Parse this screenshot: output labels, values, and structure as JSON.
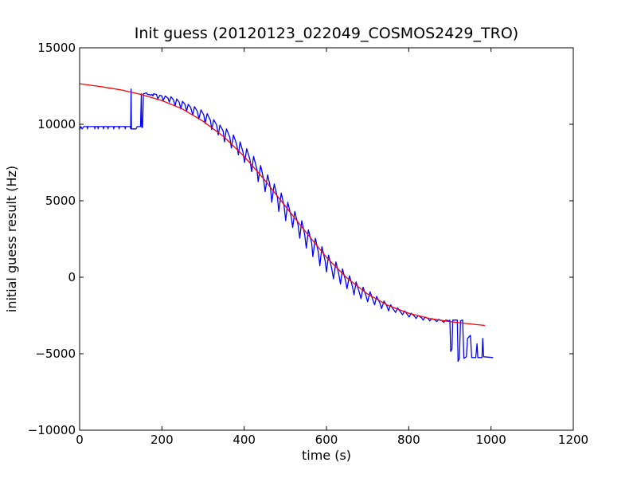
{
  "chart_data": {
    "type": "line",
    "title": "Init guess (20120123_022049_COSMOS2429_TRO)",
    "xlabel": "time (s)",
    "ylabel": "initial guess result (Hz)",
    "xlim": [
      0,
      1200
    ],
    "ylim": [
      -10000,
      15000
    ],
    "xticks": [
      0,
      200,
      400,
      600,
      800,
      1000,
      1200
    ],
    "yticks": [
      -10000,
      -5000,
      0,
      5000,
      10000,
      15000
    ],
    "grid": false,
    "series": [
      {
        "color": "#0000ff",
        "points": [
          [
            0,
            9650
          ],
          [
            3,
            9850
          ],
          [
            6,
            9700
          ],
          [
            10,
            9850
          ],
          [
            18,
            9850
          ],
          [
            19,
            9700
          ],
          [
            20,
            9850
          ],
          [
            36,
            9850
          ],
          [
            37,
            9700
          ],
          [
            38,
            9850
          ],
          [
            44,
            9850
          ],
          [
            45,
            9700
          ],
          [
            46,
            9850
          ],
          [
            57,
            9850
          ],
          [
            58,
            9700
          ],
          [
            59,
            9850
          ],
          [
            68,
            9850
          ],
          [
            69,
            9700
          ],
          [
            70,
            9850
          ],
          [
            82,
            9850
          ],
          [
            83,
            9700
          ],
          [
            84,
            9850
          ],
          [
            95,
            9850
          ],
          [
            96,
            9700
          ],
          [
            97,
            9850
          ],
          [
            110,
            9850
          ],
          [
            111,
            9700
          ],
          [
            112,
            9850
          ],
          [
            123,
            9850
          ],
          [
            124,
            9700
          ],
          [
            125,
            12300
          ],
          [
            126,
            9700
          ],
          [
            137,
            9700
          ],
          [
            140,
            9850
          ],
          [
            148,
            9850
          ],
          [
            150,
            12000
          ],
          [
            151,
            9800
          ],
          [
            153,
            9800
          ],
          [
            155,
            12000
          ],
          [
            163,
            12050
          ],
          [
            165,
            11950
          ],
          [
            170,
            11950
          ],
          [
            172,
            11900
          ],
          [
            176,
            11950
          ],
          [
            178,
            11850
          ],
          [
            180,
            12000
          ],
          [
            187,
            11950
          ],
          [
            190,
            11650
          ],
          [
            195,
            11900
          ],
          [
            200,
            11850
          ],
          [
            203,
            11550
          ],
          [
            208,
            11850
          ],
          [
            215,
            11700
          ],
          [
            218,
            11450
          ],
          [
            222,
            11800
          ],
          [
            228,
            11600
          ],
          [
            232,
            11200
          ],
          [
            236,
            11650
          ],
          [
            242,
            11450
          ],
          [
            246,
            11000
          ],
          [
            250,
            11500
          ],
          [
            256,
            11300
          ],
          [
            260,
            10850
          ],
          [
            264,
            11300
          ],
          [
            270,
            11100
          ],
          [
            275,
            10600
          ],
          [
            279,
            11150
          ],
          [
            286,
            10850
          ],
          [
            290,
            10350
          ],
          [
            295,
            10950
          ],
          [
            302,
            10600
          ],
          [
            305,
            10050
          ],
          [
            310,
            10700
          ],
          [
            318,
            10250
          ],
          [
            321,
            9650
          ],
          [
            326,
            10300
          ],
          [
            333,
            9950
          ],
          [
            337,
            9300
          ],
          [
            341,
            9950
          ],
          [
            349,
            9550
          ],
          [
            352,
            8850
          ],
          [
            357,
            9700
          ],
          [
            365,
            9150
          ],
          [
            369,
            8450
          ],
          [
            374,
            9300
          ],
          [
            382,
            8650
          ],
          [
            386,
            8000
          ],
          [
            390,
            8850
          ],
          [
            397,
            8200
          ],
          [
            401,
            7500
          ],
          [
            406,
            8400
          ],
          [
            414,
            7700
          ],
          [
            418,
            6900
          ],
          [
            423,
            7900
          ],
          [
            431,
            7050
          ],
          [
            434,
            6250
          ],
          [
            440,
            7300
          ],
          [
            447,
            6450
          ],
          [
            451,
            5600
          ],
          [
            457,
            6700
          ],
          [
            464,
            5850
          ],
          [
            467,
            4900
          ],
          [
            473,
            6100
          ],
          [
            481,
            5200
          ],
          [
            484,
            4300
          ],
          [
            490,
            5500
          ],
          [
            497,
            4650
          ],
          [
            501,
            3700
          ],
          [
            506,
            4900
          ],
          [
            514,
            4000
          ],
          [
            518,
            3250
          ],
          [
            523,
            4300
          ],
          [
            531,
            3400
          ],
          [
            535,
            2550
          ],
          [
            540,
            3700
          ],
          [
            547,
            2800
          ],
          [
            551,
            1900
          ],
          [
            556,
            3100
          ],
          [
            564,
            2250
          ],
          [
            567,
            1350
          ],
          [
            573,
            2550
          ],
          [
            580,
            1650
          ],
          [
            584,
            750
          ],
          [
            589,
            2000
          ],
          [
            597,
            1050
          ],
          [
            600,
            350
          ],
          [
            605,
            1450
          ],
          [
            613,
            550
          ],
          [
            617,
            -100
          ],
          [
            623,
            1000
          ],
          [
            630,
            200
          ],
          [
            634,
            -450
          ],
          [
            639,
            550
          ],
          [
            646,
            -200
          ],
          [
            650,
            -750
          ],
          [
            656,
            100
          ],
          [
            663,
            -600
          ],
          [
            667,
            -1150
          ],
          [
            672,
            -300
          ],
          [
            680,
            -1000
          ],
          [
            684,
            -1400
          ],
          [
            689,
            -650
          ],
          [
            696,
            -1200
          ],
          [
            700,
            -1600
          ],
          [
            706,
            -950
          ],
          [
            713,
            -1500
          ],
          [
            717,
            -1800
          ],
          [
            722,
            -1250
          ],
          [
            730,
            -1700
          ],
          [
            734,
            -2050
          ],
          [
            740,
            -1550
          ],
          [
            747,
            -1900
          ],
          [
            751,
            -2200
          ],
          [
            756,
            -1800
          ],
          [
            764,
            -2150
          ],
          [
            768,
            -2300
          ],
          [
            773,
            -2000
          ],
          [
            781,
            -2300
          ],
          [
            785,
            -2450
          ],
          [
            790,
            -2200
          ],
          [
            797,
            -2450
          ],
          [
            801,
            -2600
          ],
          [
            806,
            -2350
          ],
          [
            814,
            -2550
          ],
          [
            818,
            -2700
          ],
          [
            823,
            -2500
          ],
          [
            831,
            -2650
          ],
          [
            835,
            -2800
          ],
          [
            840,
            -2600
          ],
          [
            847,
            -2700
          ],
          [
            851,
            -2850
          ],
          [
            856,
            -2700
          ],
          [
            864,
            -2800
          ],
          [
            868,
            -2900
          ],
          [
            873,
            -2750
          ],
          [
            881,
            -2850
          ],
          [
            885,
            -2950
          ],
          [
            890,
            -2800
          ],
          [
            897,
            -2850
          ],
          [
            900,
            -2800
          ],
          [
            902,
            -4850
          ],
          [
            905,
            -4700
          ],
          [
            907,
            -2800
          ],
          [
            918,
            -2800
          ],
          [
            920,
            -5500
          ],
          [
            923,
            -5300
          ],
          [
            926,
            -2850
          ],
          [
            931,
            -2800
          ],
          [
            934,
            -5300
          ],
          [
            940,
            -5200
          ],
          [
            943,
            -4000
          ],
          [
            950,
            -3800
          ],
          [
            953,
            -5250
          ],
          [
            963,
            -5250
          ],
          [
            966,
            -4350
          ],
          [
            968,
            -5250
          ],
          [
            978,
            -5250
          ],
          [
            980,
            -4000
          ],
          [
            982,
            -5200
          ],
          [
            1005,
            -5250
          ]
        ]
      },
      {
        "color": "#ff0000",
        "points": [
          [
            0,
            12650
          ],
          [
            50,
            12470
          ],
          [
            100,
            12250
          ],
          [
            150,
            11950
          ],
          [
            200,
            11550
          ],
          [
            250,
            11000
          ],
          [
            300,
            10200
          ],
          [
            350,
            9200
          ],
          [
            400,
            7900
          ],
          [
            450,
            6350
          ],
          [
            500,
            4650
          ],
          [
            550,
            2950
          ],
          [
            600,
            1300
          ],
          [
            650,
            -50
          ],
          [
            700,
            -1100
          ],
          [
            750,
            -1850
          ],
          [
            800,
            -2350
          ],
          [
            850,
            -2700
          ],
          [
            900,
            -2900
          ],
          [
            950,
            -3050
          ],
          [
            985,
            -3150
          ]
        ]
      }
    ]
  }
}
